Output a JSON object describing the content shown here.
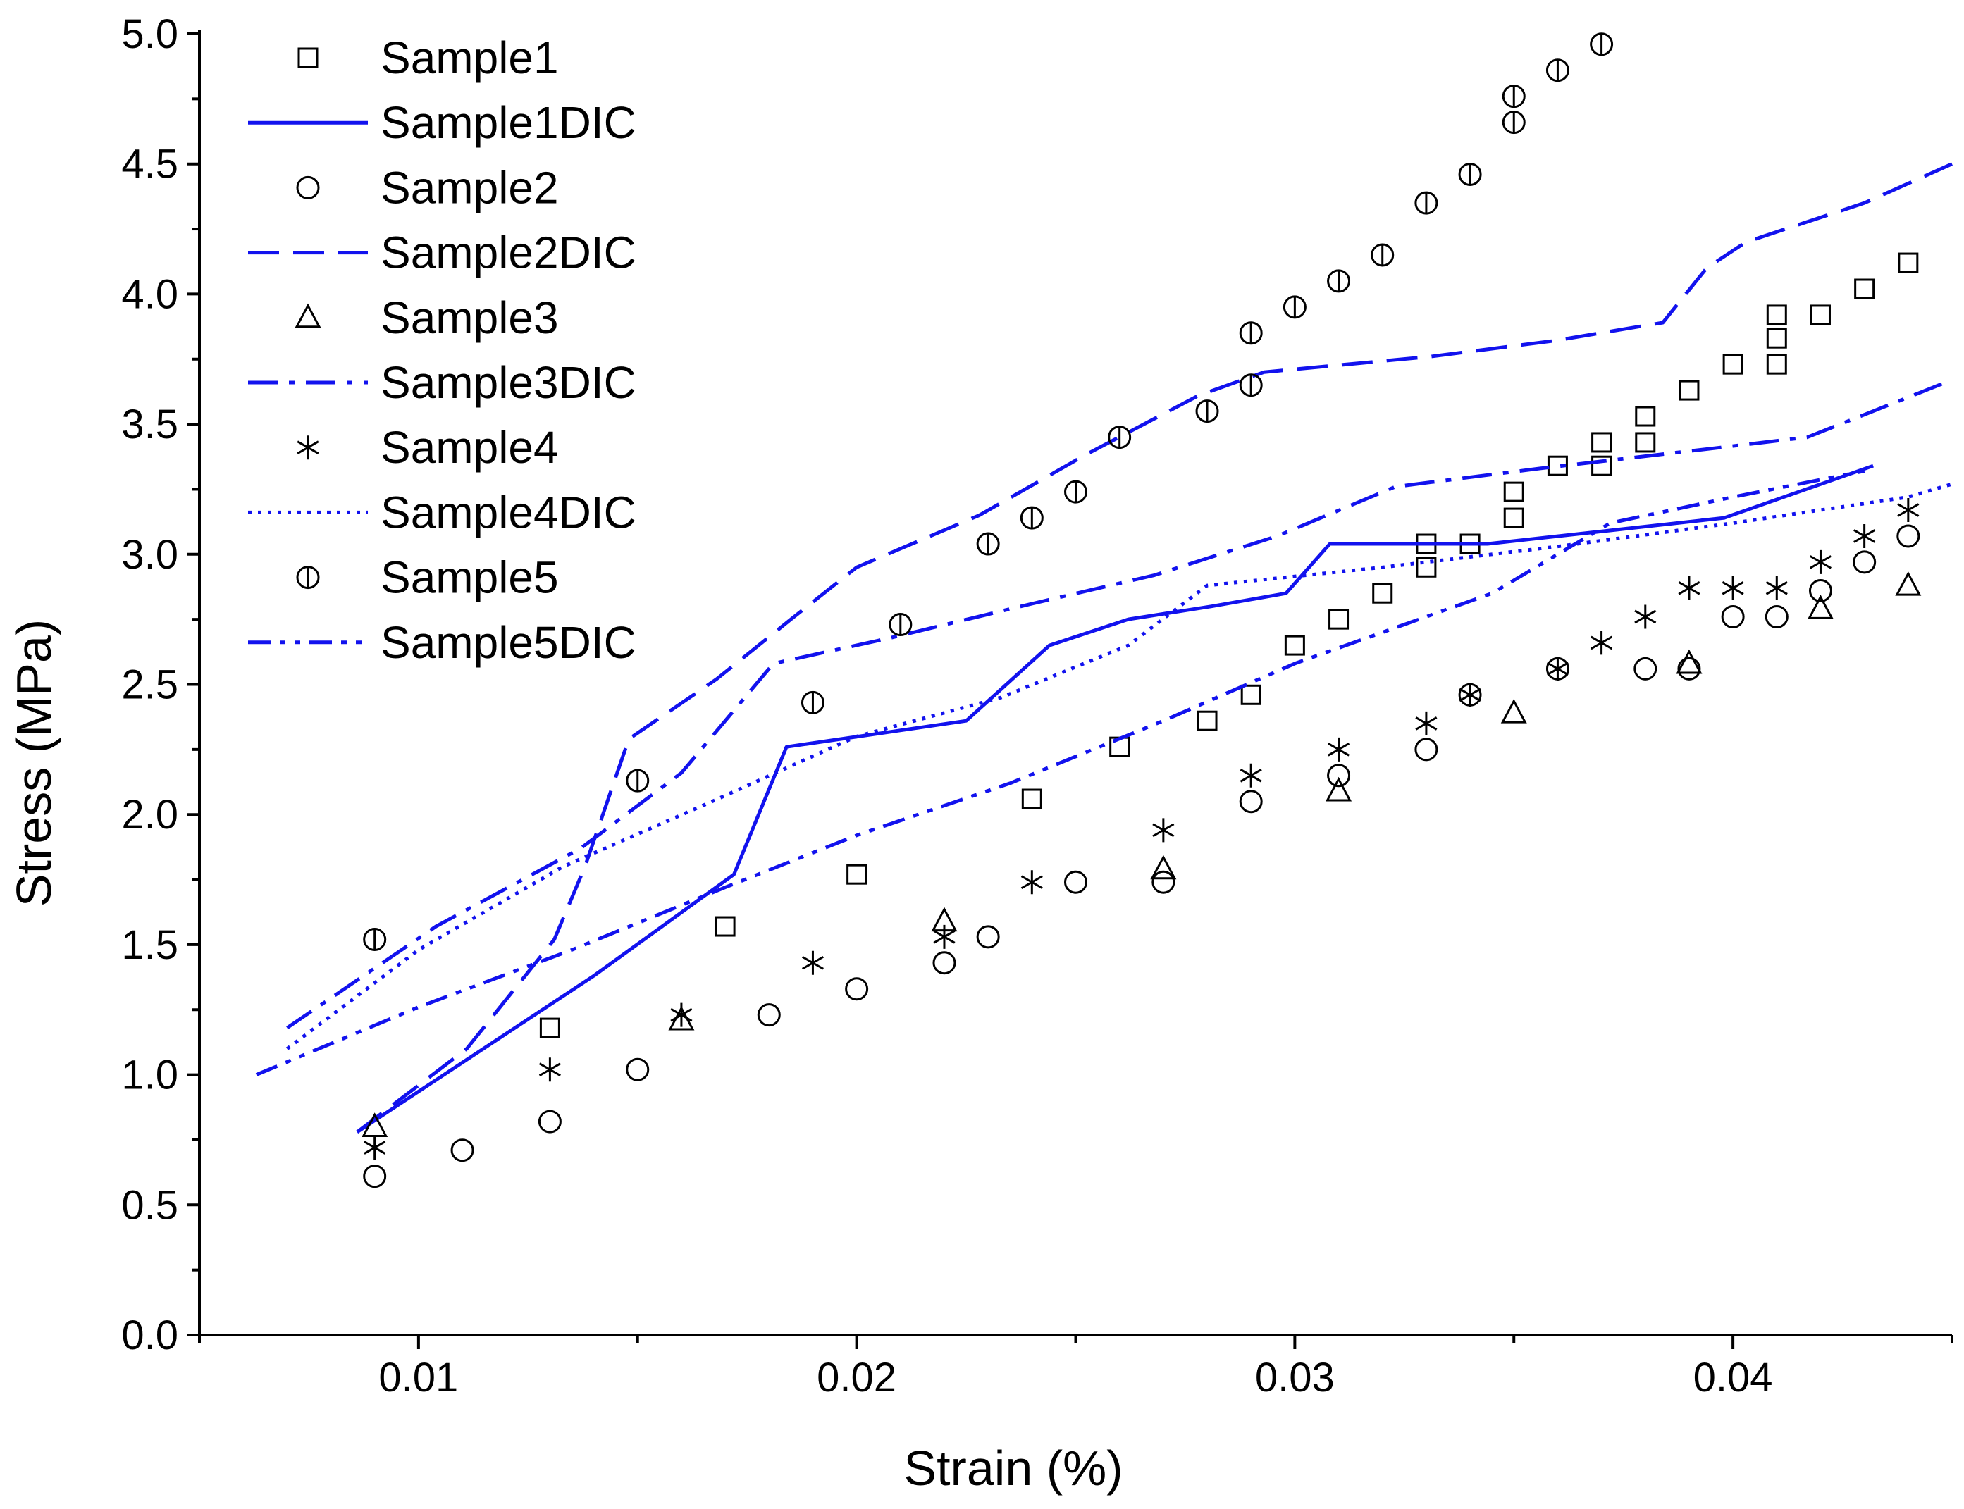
{
  "chart_data": {
    "type": "scatter",
    "title": "",
    "xlabel": "Strain (%)",
    "ylabel": "Stress (MPa)",
    "xlim": [
      0.005,
      0.045
    ],
    "ylim": [
      0,
      5
    ],
    "xticks": [
      0.01,
      0.02,
      0.03,
      0.04
    ],
    "xtick_labels": [
      "0.01",
      "0.02",
      "0.03",
      "0.04"
    ],
    "yticks": [
      0,
      0.5,
      1,
      1.5,
      2,
      2.5,
      3,
      3.5,
      4,
      4.5,
      5
    ],
    "ytick_labels": [
      "0.0",
      "0.5",
      "1.0",
      "1.5",
      "2.0",
      "2.5",
      "3.0",
      "3.5",
      "4.0",
      "4.5",
      "5.0"
    ],
    "grid": false,
    "legend_position": "top-left",
    "line_color": "#1212ee",
    "series": [
      {
        "name": "Sample1",
        "kind": "marker",
        "marker": "square",
        "x": [
          0.013,
          0.017,
          0.02,
          0.024,
          0.026,
          0.028,
          0.029,
          0.03,
          0.031,
          0.032,
          0.033,
          0.033,
          0.034,
          0.035,
          0.035,
          0.036,
          0.037,
          0.037,
          0.038,
          0.038,
          0.039,
          0.04,
          0.041,
          0.041,
          0.041,
          0.042,
          0.043,
          0.044
        ],
        "y": [
          1.18,
          1.57,
          1.77,
          2.06,
          2.26,
          2.36,
          2.46,
          2.65,
          2.75,
          2.85,
          2.95,
          3.04,
          3.04,
          3.14,
          3.24,
          3.34,
          3.34,
          3.43,
          3.43,
          3.53,
          3.63,
          3.73,
          3.73,
          3.83,
          3.92,
          3.92,
          4.02,
          4.12
        ]
      },
      {
        "name": "Sample1DIC",
        "kind": "line",
        "dash": "solid",
        "x": [
          0.0086,
          0.014,
          0.0172,
          0.0184,
          0.0225,
          0.0244,
          0.0262,
          0.0281,
          0.0298,
          0.0308,
          0.0344,
          0.0371,
          0.0398,
          0.0432
        ],
        "y": [
          0.78,
          1.38,
          1.77,
          2.26,
          2.36,
          2.65,
          2.75,
          2.8,
          2.85,
          3.04,
          3.04,
          3.09,
          3.14,
          3.34
        ]
      },
      {
        "name": "Sample2",
        "kind": "marker",
        "marker": "circle",
        "x": [
          0.009,
          0.011,
          0.013,
          0.015,
          0.018,
          0.02,
          0.022,
          0.023,
          0.025,
          0.027,
          0.029,
          0.031,
          0.033,
          0.034,
          0.036,
          0.038,
          0.039,
          0.04,
          0.041,
          0.042,
          0.043,
          0.044
        ],
        "y": [
          0.61,
          0.71,
          0.82,
          1.02,
          1.23,
          1.33,
          1.43,
          1.53,
          1.74,
          1.74,
          2.05,
          2.15,
          2.25,
          2.46,
          2.56,
          2.56,
          2.56,
          2.76,
          2.76,
          2.86,
          2.97,
          3.07
        ]
      },
      {
        "name": "Sample2DIC",
        "kind": "line",
        "dash": "longdash",
        "x": [
          0.0086,
          0.0111,
          0.0131,
          0.0138,
          0.0148,
          0.0168,
          0.0185,
          0.02,
          0.0228,
          0.0252,
          0.0278,
          0.0293,
          0.0331,
          0.0359,
          0.0384,
          0.0394,
          0.0403,
          0.043,
          0.045
        ],
        "y": [
          0.78,
          1.1,
          1.52,
          1.8,
          2.29,
          2.52,
          2.75,
          2.95,
          3.15,
          3.38,
          3.61,
          3.7,
          3.76,
          3.82,
          3.89,
          4.1,
          4.2,
          4.35,
          4.5
        ]
      },
      {
        "name": "Sample3",
        "kind": "marker",
        "marker": "triangle",
        "x": [
          0.009,
          0.016,
          0.022,
          0.027,
          0.031,
          0.035,
          0.039,
          0.042,
          0.044
        ],
        "y": [
          0.8,
          1.21,
          1.59,
          1.79,
          2.09,
          2.39,
          2.58,
          2.79,
          2.88
        ]
      },
      {
        "name": "Sample3DIC",
        "kind": "line",
        "dash": "dashdot",
        "x": [
          0.007,
          0.0104,
          0.0137,
          0.016,
          0.0181,
          0.0208,
          0.024,
          0.0268,
          0.0296,
          0.0323,
          0.0356,
          0.0397,
          0.0417,
          0.045
        ],
        "y": [
          1.18,
          1.57,
          1.87,
          2.16,
          2.58,
          2.68,
          2.81,
          2.92,
          3.07,
          3.26,
          3.33,
          3.41,
          3.45,
          3.67
        ]
      },
      {
        "name": "Sample4",
        "kind": "marker",
        "marker": "asterisk",
        "x": [
          0.009,
          0.013,
          0.016,
          0.019,
          0.022,
          0.024,
          0.027,
          0.029,
          0.031,
          0.033,
          0.034,
          0.036,
          0.037,
          0.038,
          0.039,
          0.04,
          0.041,
          0.042,
          0.043,
          0.044
        ],
        "y": [
          0.72,
          1.02,
          1.23,
          1.43,
          1.53,
          1.74,
          1.94,
          2.15,
          2.25,
          2.35,
          2.46,
          2.56,
          2.66,
          2.76,
          2.87,
          2.87,
          2.87,
          2.97,
          3.07,
          3.17
        ]
      },
      {
        "name": "Sample4DIC",
        "kind": "line",
        "dash": "dotted",
        "x": [
          0.007,
          0.01,
          0.0133,
          0.0167,
          0.02,
          0.0233,
          0.0262,
          0.028,
          0.032,
          0.036,
          0.04,
          0.044,
          0.045
        ],
        "y": [
          1.1,
          1.48,
          1.8,
          2.05,
          2.3,
          2.45,
          2.65,
          2.88,
          2.95,
          3.03,
          3.12,
          3.22,
          3.27
        ]
      },
      {
        "name": "Sample5",
        "kind": "marker",
        "marker": "circle-bar",
        "x": [
          0.009,
          0.015,
          0.019,
          0.021,
          0.023,
          0.024,
          0.025,
          0.026,
          0.028,
          0.029,
          0.029,
          0.03,
          0.031,
          0.032,
          0.033,
          0.034,
          0.035,
          0.035,
          0.036,
          0.037
        ],
        "y": [
          1.52,
          2.13,
          2.43,
          2.73,
          3.04,
          3.14,
          3.24,
          3.45,
          3.55,
          3.65,
          3.85,
          3.95,
          4.05,
          4.15,
          4.35,
          4.46,
          4.66,
          4.76,
          4.86,
          4.96
        ]
      },
      {
        "name": "Sample5DIC",
        "kind": "line",
        "dash": "dashdotdot",
        "x": [
          0.0063,
          0.01,
          0.0135,
          0.017,
          0.02,
          0.0235,
          0.027,
          0.03,
          0.032,
          0.0345,
          0.0372,
          0.04,
          0.043
        ],
        "y": [
          1.0,
          1.26,
          1.48,
          1.72,
          1.92,
          2.12,
          2.36,
          2.58,
          2.7,
          2.85,
          3.12,
          3.22,
          3.32
        ]
      }
    ]
  }
}
